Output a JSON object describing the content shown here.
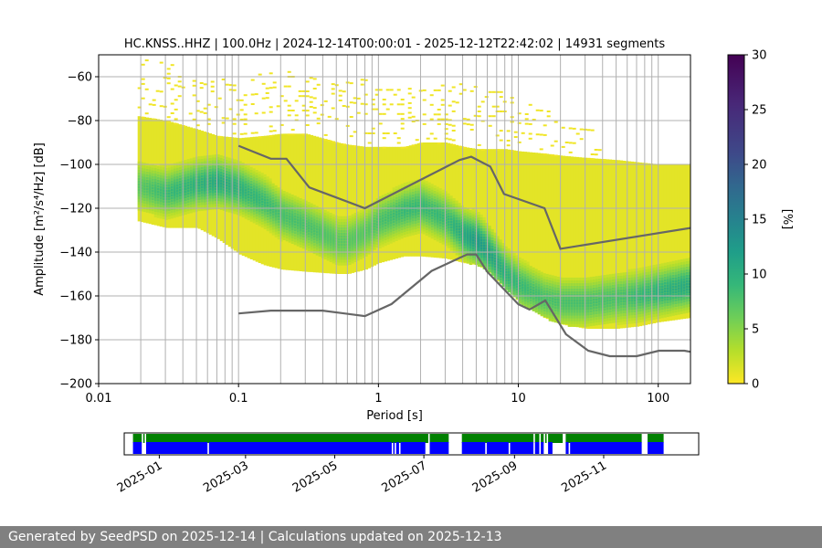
{
  "title": "HC.KNSS..HHZ | 100.0Hz | 2024-12-14T00:00:01 - 2025-12-12T22:42:02 | 14931 segments",
  "footer": "Generated by SeedPSD on 2025-12-14 | Calculations updated on 2025-12-13",
  "chart_data": {
    "type": "heatmap",
    "title": "HC.KNSS..HHZ | 100.0Hz | 2024-12-14T00:00:01 - 2025-12-12T22:42:02 | 14931 segments",
    "xlabel": "Period [s]",
    "ylabel": "Amplitude [m²/s⁴/Hz] [dB]",
    "x_scale": "log",
    "xlim": [
      0.01,
      170
    ],
    "ylim": [
      -200,
      -50
    ],
    "x_ticks": [
      0.01,
      0.1,
      1,
      10,
      100
    ],
    "x_tick_labels": [
      "0.01",
      "0.1",
      "1",
      "10",
      "100"
    ],
    "y_ticks": [
      -200,
      -180,
      -160,
      -140,
      -120,
      -100,
      -80,
      -60
    ],
    "y_tick_labels": [
      "−200",
      "−180",
      "−160",
      "−140",
      "−120",
      "−100",
      "−80",
      "−60"
    ],
    "grid": true,
    "grid_x_lines": [
      0.02,
      0.03,
      0.04,
      0.05,
      0.06,
      0.07,
      0.08,
      0.09,
      0.1,
      0.2,
      0.3,
      0.4,
      0.5,
      0.6,
      0.7,
      0.8,
      0.9,
      1,
      2,
      3,
      4,
      5,
      6,
      7,
      8,
      9,
      10,
      20,
      30,
      40,
      50,
      60,
      70,
      80,
      90,
      100
    ],
    "colorbar": {
      "label": "[%]",
      "range": [
        0,
        30
      ],
      "ticks": [
        0,
        5,
        10,
        15,
        20,
        25,
        30
      ],
      "colormap": "viridis_r"
    },
    "colormap_stops": [
      "#fde725",
      "#b5de2b",
      "#6ece58",
      "#35b779",
      "#1f9e89",
      "#26828e",
      "#31688e",
      "#3e4989",
      "#482878",
      "#440154"
    ],
    "psd_band": {
      "period": [
        0.019,
        0.03,
        0.05,
        0.07,
        0.1,
        0.15,
        0.2,
        0.3,
        0.5,
        0.6,
        0.8,
        1,
        1.5,
        2,
        3,
        4,
        5,
        6,
        8,
        10,
        15,
        20,
        30,
        50,
        70,
        100,
        170
      ],
      "upper": [
        -78,
        -80,
        -84,
        -87,
        -88,
        -87,
        -86,
        -86,
        -90,
        -91,
        -92,
        -92,
        -92,
        -90,
        -90,
        -92,
        -93,
        -93,
        -93,
        -94,
        -95,
        -96,
        -97,
        -98,
        -99,
        -100,
        -100
      ],
      "lower": [
        -126,
        -129,
        -129,
        -134,
        -141,
        -146,
        -148,
        -149,
        -150,
        -150,
        -148,
        -145,
        -142,
        -142,
        -143,
        -145,
        -146,
        -149,
        -157,
        -163,
        -170,
        -173,
        -175,
        -175,
        -174,
        -172,
        -170
      ],
      "mode": [
        -110,
        -113,
        -109,
        -108,
        -111,
        -117,
        -123,
        -128,
        -135,
        -135,
        -131,
        -126,
        -121,
        -119,
        -125,
        -132,
        -135,
        -140,
        -150,
        -155,
        -161,
        -163,
        -163,
        -161,
        -160,
        -158,
        -155
      ],
      "mode_peak_percent": [
        8,
        10,
        11,
        12,
        11,
        10,
        9,
        9,
        8,
        8,
        8,
        9,
        10,
        10,
        10,
        12,
        14,
        13,
        11,
        10,
        9,
        9,
        9,
        9,
        10,
        11,
        12
      ]
    },
    "sparse_upper": {
      "period": [
        0.019,
        0.03,
        0.05,
        0.1,
        0.2,
        0.3,
        0.5,
        1,
        2,
        3,
        5,
        8,
        10,
        20,
        30,
        40
      ],
      "top": [
        -50,
        -53,
        -60,
        -60,
        -56,
        -57,
        -59,
        -62,
        -64,
        -62,
        -63,
        -67,
        -70,
        -78,
        -82,
        -88
      ]
    },
    "noise_models": [
      {
        "name": "",
        "period": [
          0.1,
          0.17,
          0.22,
          0.32,
          0.8,
          3.8,
          4.6,
          6.3,
          7.9,
          15.4,
          20,
          170
        ],
        "values": [
          -91.5,
          -97.4,
          -97.4,
          -110.5,
          -120,
          -98,
          -96.5,
          -101,
          -113.5,
          -120,
          -138.5,
          -129
        ]
      },
      {
        "name": "",
        "period": [
          0.1,
          0.17,
          0.4,
          0.8,
          1.24,
          2.4,
          4.3,
          5,
          6,
          10,
          12,
          15.6,
          21.9,
          31.6,
          45,
          70,
          101,
          154,
          170
        ],
        "values": [
          -168,
          -166.7,
          -166.7,
          -169.2,
          -163.7,
          -148.6,
          -141.1,
          -141.1,
          -149,
          -163.8,
          -166.2,
          -162.1,
          -177.5,
          -185,
          -187.5,
          -187.5,
          -185,
          -185,
          -185.5
        ]
      }
    ],
    "availability": {
      "date_ticks": [
        "2025-01",
        "2025-03",
        "2025-05",
        "2025-07",
        "2025-09",
        "2025-11"
      ],
      "range": [
        "2024-12-14",
        "2025-12-12"
      ],
      "legend": [
        {
          "color": "#008000",
          "row": "top"
        },
        {
          "color": "#0000ff",
          "row": "bottom"
        }
      ],
      "gaps": [
        [
          "2024-12-20",
          "2024-12-21"
        ],
        [
          "2024-12-22",
          "2024-12-23"
        ],
        [
          "2025-07-04",
          "2025-07-05"
        ],
        [
          "2025-07-18",
          "2025-07-27"
        ],
        [
          "2025-09-14",
          "2025-09-15"
        ],
        [
          "2025-09-18",
          "2025-09-19"
        ],
        [
          "2025-09-21",
          "2025-09-22"
        ],
        [
          "2025-09-23",
          "2025-09-24"
        ],
        [
          "2025-10-04",
          "2025-10-06"
        ],
        [
          "2025-11-27",
          "2025-12-01"
        ]
      ],
      "blue_gaps": [
        [
          "2024-12-20",
          "2024-12-23"
        ],
        [
          "2025-02-03",
          "2025-02-04"
        ],
        [
          "2025-06-09",
          "2025-06-10"
        ],
        [
          "2025-06-11",
          "2025-06-12"
        ],
        [
          "2025-06-14",
          "2025-06-15"
        ],
        [
          "2025-07-02",
          "2025-07-05"
        ],
        [
          "2025-07-18",
          "2025-07-27"
        ],
        [
          "2025-08-12",
          "2025-08-13"
        ],
        [
          "2025-08-28",
          "2025-08-29"
        ],
        [
          "2025-09-14",
          "2025-09-15"
        ],
        [
          "2025-09-18",
          "2025-09-19"
        ],
        [
          "2025-09-21",
          "2025-09-24"
        ],
        [
          "2025-09-27",
          "2025-10-06"
        ],
        [
          "2025-10-08",
          "2025-10-09"
        ],
        [
          "2025-11-27",
          "2025-12-01"
        ]
      ]
    }
  }
}
